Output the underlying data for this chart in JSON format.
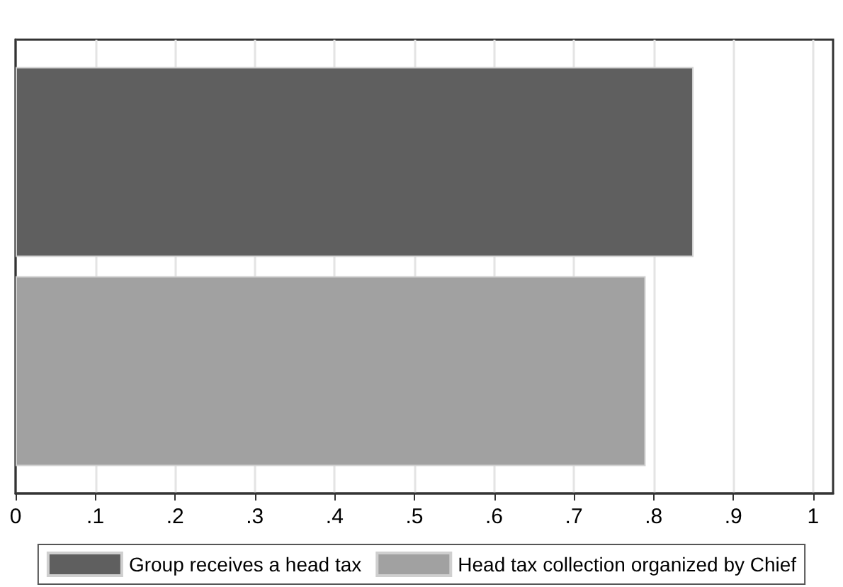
{
  "chart_data": {
    "type": "bar",
    "orientation": "horizontal",
    "categories": [
      null
    ],
    "series": [
      {
        "name": "Group receives a head tax",
        "color": "#5f5f5f",
        "values": [
          0.85
        ]
      },
      {
        "name": "Head tax collection organized by Chief",
        "color": "#a1a1a1",
        "values": [
          0.79
        ]
      }
    ],
    "xlim": [
      0,
      1.025
    ],
    "xticks": [
      0,
      {
        "value": 0.1,
        "label": ".1"
      },
      {
        "value": 0.2,
        "label": ".2"
      },
      {
        "value": 0.3,
        "label": ".3"
      },
      {
        "value": 0.4,
        "label": ".4"
      },
      {
        "value": 0.5,
        "label": ".5"
      },
      {
        "value": 0.6,
        "label": ".6"
      },
      {
        "value": 0.7,
        "label": ".7"
      },
      {
        "value": 0.8,
        "label": ".8"
      },
      {
        "value": 0.9,
        "label": ".9"
      },
      1
    ],
    "grid": "x",
    "legend": "bottom",
    "tick_labels": "x"
  }
}
